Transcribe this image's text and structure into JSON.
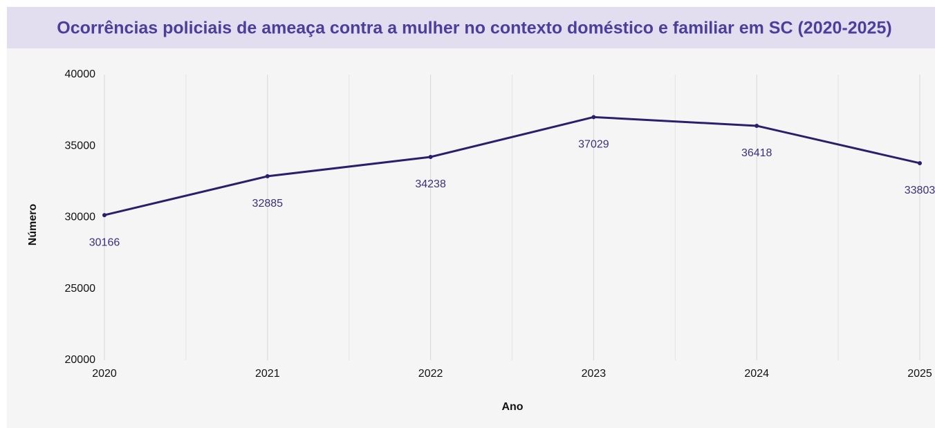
{
  "chart_data": {
    "type": "line",
    "title": "Ocorrências policiais de ameaça contra a mulher no contexto doméstico e familiar em SC (2020-2025)",
    "x_label": "Ano",
    "y_label": "Número",
    "x": [
      2020,
      2021,
      2022,
      2023,
      2024,
      2025
    ],
    "series": [
      {
        "name": "Número",
        "color": "#2a1f6b",
        "values": [
          30166,
          32885,
          34238,
          37029,
          36418,
          33803
        ]
      }
    ],
    "xlim": [
      2020,
      2025
    ],
    "xticks": [
      2020,
      2021,
      2022,
      2023,
      2024,
      2025
    ],
    "ylim": [
      20000,
      40000
    ],
    "yticks": [
      20000,
      25000,
      30000,
      35000,
      40000
    ],
    "grid": true
  }
}
